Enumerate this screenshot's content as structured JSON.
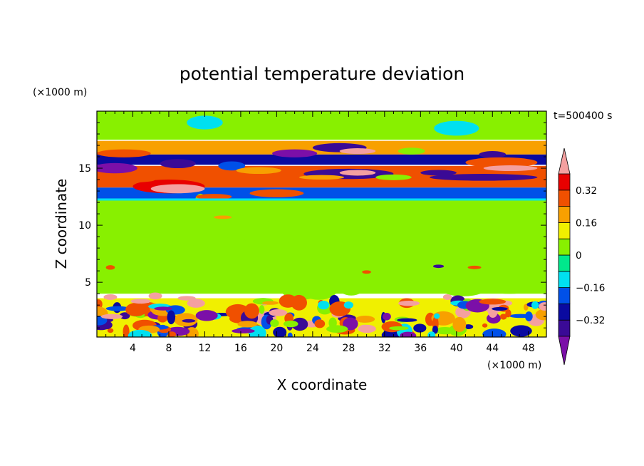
{
  "chart_data": {
    "type": "heatmap",
    "title": "potential temperature deviation",
    "time_label": "t=500400 s",
    "xlabel": "X coordinate",
    "ylabel": "Z coordinate",
    "x_unit": "(×1000 m)",
    "y_unit": "(×1000 m)",
    "xlim": [
      0,
      50
    ],
    "ylim": [
      0.2,
      20
    ],
    "x_ticks": [
      4,
      8,
      12,
      16,
      20,
      24,
      28,
      32,
      36,
      40,
      44,
      48
    ],
    "y_ticks": [
      5,
      10,
      15
    ],
    "colorbar": {
      "levels": [
        -0.48,
        -0.4,
        -0.32,
        -0.24,
        -0.16,
        -0.08,
        0,
        0.08,
        0.16,
        0.24,
        0.32,
        0.4
      ],
      "tick_values": [
        0.32,
        0.16,
        0,
        -0.16,
        -0.32
      ],
      "tick_labels": [
        "0.32",
        "0.16",
        "0",
        "−0.16",
        "−0.32"
      ],
      "colors": [
        "#7b0fa8",
        "#3a0a96",
        "#0a0aa0",
        "#0050e8",
        "#00e0f0",
        "#00e88c",
        "#88f000",
        "#f0f000",
        "#f8a000",
        "#f05000",
        "#e80000",
        "#f4a0a0"
      ],
      "extend": "both"
    },
    "bands": [
      {
        "z_range": [
          17.5,
          20
        ],
        "value": 0.04
      },
      {
        "z_range": [
          16.2,
          17.4
        ],
        "value": 0.2
      },
      {
        "z_range": [
          15.3,
          16.2
        ],
        "value": -0.25
      },
      {
        "z_range": [
          13.3,
          15.2
        ],
        "value": 0.3
      },
      {
        "z_range": [
          12.3,
          13.3
        ],
        "value": -0.2
      },
      {
        "z_range": [
          4,
          12.2
        ],
        "value": 0.02
      },
      {
        "z_range": [
          0.2,
          3.6
        ],
        "value": 0.1
      }
    ]
  }
}
